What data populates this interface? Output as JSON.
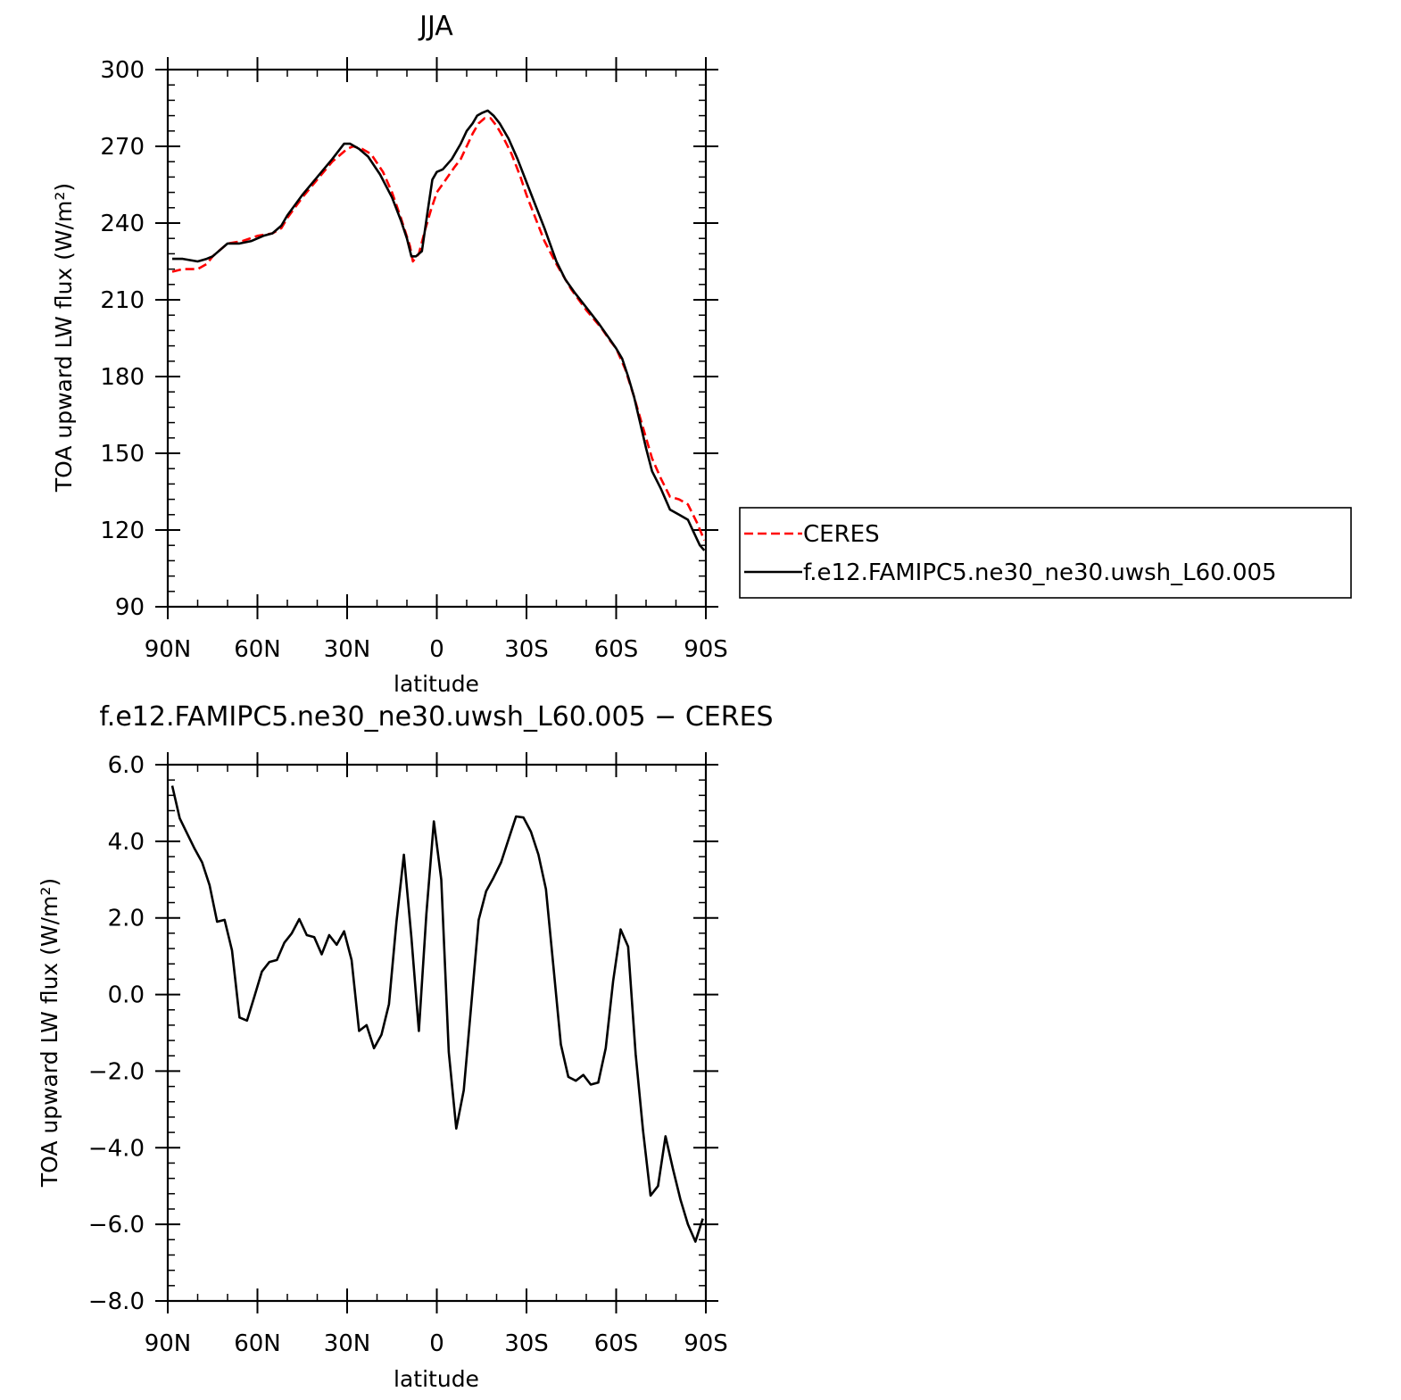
{
  "chart_data": [
    {
      "type": "line",
      "title": "JJA",
      "xlabel": "latitude",
      "ylabel": "TOA upward LW flux (W/m²)",
      "ylim": [
        90,
        300
      ],
      "yticks": [
        "90",
        "120",
        "150",
        "180",
        "210",
        "240",
        "270",
        "300"
      ],
      "xlim": [
        90,
        -90
      ],
      "xticks": [
        {
          "value": 90,
          "label": "90N"
        },
        {
          "value": 60,
          "label": "60N"
        },
        {
          "value": 30,
          "label": "30N"
        },
        {
          "value": 0,
          "label": "0"
        },
        {
          "value": -30,
          "label": "30S"
        },
        {
          "value": -60,
          "label": "60S"
        },
        {
          "value": -90,
          "label": "90S"
        }
      ],
      "grid": false,
      "legend": "right, outside plot",
      "series": [
        {
          "name": "CERES",
          "color": "#ff0000",
          "dash": "dashed",
          "points": [
            [
              88.5,
              221
            ],
            [
              85,
              222
            ],
            [
              80,
              222
            ],
            [
              77,
              224
            ],
            [
              75,
              227
            ],
            [
              70,
              232
            ],
            [
              65,
              233
            ],
            [
              60,
              235
            ],
            [
              55,
              236
            ],
            [
              52,
              238
            ],
            [
              50,
              242
            ],
            [
              45,
              250
            ],
            [
              40,
              257
            ],
            [
              35,
              264
            ],
            [
              30,
              269
            ],
            [
              28,
              270
            ],
            [
              25,
              269
            ],
            [
              22,
              267
            ],
            [
              18,
              260
            ],
            [
              15,
              252
            ],
            [
              12,
              242
            ],
            [
              9,
              231
            ],
            [
              8,
              225
            ],
            [
              6,
              228
            ],
            [
              4,
              237
            ],
            [
              2,
              245
            ],
            [
              0,
              252
            ],
            [
              -3,
              257
            ],
            [
              -6,
              262
            ],
            [
              -8,
              265
            ],
            [
              -10,
              270
            ],
            [
              -12,
              275
            ],
            [
              -14,
              279
            ],
            [
              -16,
              281
            ],
            [
              -18,
              281
            ],
            [
              -20,
              278
            ],
            [
              -22,
              274
            ],
            [
              -25,
              267
            ],
            [
              -28,
              258
            ],
            [
              -30,
              251
            ],
            [
              -33,
              242
            ],
            [
              -36,
              233
            ],
            [
              -40,
              224
            ],
            [
              -45,
              214
            ],
            [
              -50,
              206
            ],
            [
              -55,
              199
            ],
            [
              -58,
              194
            ],
            [
              -60,
              191
            ],
            [
              -63,
              183
            ],
            [
              -66,
              172
            ],
            [
              -69,
              160
            ],
            [
              -72,
              148
            ],
            [
              -75,
              140
            ],
            [
              -78,
              133
            ],
            [
              -81,
              132
            ],
            [
              -84,
              130
            ],
            [
              -87,
              123
            ],
            [
              -89.5,
              116
            ]
          ]
        },
        {
          "name": "f.e12.FAMIPC5.ne30_ne30.uwsh_L60.005",
          "color": "#000000",
          "dash": "solid",
          "points": [
            [
              88.5,
              226
            ],
            [
              85,
              226
            ],
            [
              80,
              225
            ],
            [
              77,
              226
            ],
            [
              75,
              227
            ],
            [
              72,
              230
            ],
            [
              70,
              232
            ],
            [
              66,
              232
            ],
            [
              62,
              233
            ],
            [
              58,
              235
            ],
            [
              55,
              236
            ],
            [
              52,
              239
            ],
            [
              50,
              243
            ],
            [
              45,
              251
            ],
            [
              40,
              258
            ],
            [
              35,
              265
            ],
            [
              31,
              271
            ],
            [
              29,
              271
            ],
            [
              26,
              269
            ],
            [
              23,
              266
            ],
            [
              19,
              259
            ],
            [
              15,
              250
            ],
            [
              12,
              241
            ],
            [
              10,
              234
            ],
            [
              8.5,
              227
            ],
            [
              7,
              227
            ],
            [
              5,
              229
            ],
            [
              3,
              245
            ],
            [
              1.5,
              257
            ],
            [
              0,
              260
            ],
            [
              -2,
              261
            ],
            [
              -5,
              265
            ],
            [
              -8,
              271
            ],
            [
              -10,
              276
            ],
            [
              -12,
              279
            ],
            [
              -13.5,
              282
            ],
            [
              -15,
              283
            ],
            [
              -17,
              284
            ],
            [
              -19,
              282
            ],
            [
              -21,
              279
            ],
            [
              -24,
              273
            ],
            [
              -27,
              265
            ],
            [
              -30,
              256
            ],
            [
              -33,
              247
            ],
            [
              -36,
              238
            ],
            [
              -40,
              225
            ],
            [
              -43,
              218
            ],
            [
              -46,
              213
            ],
            [
              -50,
              207
            ],
            [
              -54,
              201
            ],
            [
              -57,
              196
            ],
            [
              -60,
              191
            ],
            [
              -62,
              187
            ],
            [
              -64,
              180
            ],
            [
              -66,
              172
            ],
            [
              -68,
              162
            ],
            [
              -70,
              152
            ],
            [
              -72,
              143
            ],
            [
              -75,
              136
            ],
            [
              -78,
              128
            ],
            [
              -81,
              126
            ],
            [
              -84,
              124
            ],
            [
              -86,
              119
            ],
            [
              -88,
              114
            ],
            [
              -89.5,
              112
            ]
          ]
        }
      ]
    },
    {
      "type": "line",
      "title": "f.e12.FAMIPC5.ne30_ne30.uwsh_L60.005 − CERES",
      "xlabel": "latitude",
      "ylabel": "TOA upward LW flux (W/m²)",
      "ylim": [
        -8,
        6
      ],
      "yticks": [
        "−8.0",
        "−6.0",
        "−4.0",
        "−2.0",
        "0.0",
        "2.0",
        "4.0",
        "6.0"
      ],
      "xlim": [
        90,
        -90
      ],
      "xticks": [
        {
          "value": 90,
          "label": "90N"
        },
        {
          "value": 60,
          "label": "60N"
        },
        {
          "value": 30,
          "label": "30N"
        },
        {
          "value": 0,
          "label": "0"
        },
        {
          "value": -30,
          "label": "30S"
        },
        {
          "value": -60,
          "label": "60S"
        },
        {
          "value": -90,
          "label": "90S"
        }
      ],
      "grid": false,
      "series": [
        {
          "color": "#000000",
          "dash": "solid",
          "points": [
            [
              88.5,
              5.45
            ],
            [
              86,
              4.6
            ],
            [
              83.5,
              4.2
            ],
            [
              81,
              3.8
            ],
            [
              78.5,
              3.45
            ],
            [
              76,
              2.85
            ],
            [
              73.5,
              1.9
            ],
            [
              71,
              1.95
            ],
            [
              68.5,
              1.15
            ],
            [
              66,
              -0.6
            ],
            [
              63.5,
              -0.68
            ],
            [
              61,
              -0.05
            ],
            [
              58.5,
              0.6
            ],
            [
              56,
              0.85
            ],
            [
              53.5,
              0.9
            ],
            [
              51,
              1.35
            ],
            [
              48.5,
              1.6
            ],
            [
              46,
              1.97
            ],
            [
              43.5,
              1.55
            ],
            [
              41,
              1.5
            ],
            [
              38.5,
              1.05
            ],
            [
              36,
              1.55
            ],
            [
              33.5,
              1.3
            ],
            [
              31,
              1.65
            ],
            [
              28.5,
              0.9
            ],
            [
              26,
              -0.95
            ],
            [
              23.5,
              -0.8
            ],
            [
              21,
              -1.4
            ],
            [
              18.5,
              -1.05
            ],
            [
              16,
              -0.25
            ],
            [
              13.5,
              1.9
            ],
            [
              11,
              3.65
            ],
            [
              8.5,
              1.5
            ],
            [
              6,
              -0.95
            ],
            [
              3.5,
              2.1
            ],
            [
              1,
              4.52
            ],
            [
              -1.5,
              3.0
            ],
            [
              -4,
              -1.5
            ],
            [
              -6.5,
              -3.5
            ],
            [
              -9,
              -2.5
            ],
            [
              -11.5,
              -0.3
            ],
            [
              -14,
              1.95
            ],
            [
              -16.5,
              2.7
            ],
            [
              -19,
              3.05
            ],
            [
              -21.5,
              3.45
            ],
            [
              -24,
              4.05
            ],
            [
              -26.5,
              4.65
            ],
            [
              -29,
              4.62
            ],
            [
              -31.5,
              4.25
            ],
            [
              -34,
              3.65
            ],
            [
              -36.5,
              2.75
            ],
            [
              -39,
              0.75
            ],
            [
              -41.5,
              -1.3
            ],
            [
              -44,
              -2.15
            ],
            [
              -46.5,
              -2.25
            ],
            [
              -49,
              -2.1
            ],
            [
              -51.5,
              -2.35
            ],
            [
              -54,
              -2.3
            ],
            [
              -56.5,
              -1.4
            ],
            [
              -59,
              0.35
            ],
            [
              -61.5,
              1.7
            ],
            [
              -64,
              1.25
            ],
            [
              -66.5,
              -1.55
            ],
            [
              -69,
              -3.55
            ],
            [
              -71.5,
              -5.25
            ],
            [
              -74,
              -5.0
            ],
            [
              -76.5,
              -3.7
            ],
            [
              -79,
              -4.55
            ],
            [
              -81.5,
              -5.35
            ],
            [
              -84,
              -6.0
            ],
            [
              -86.5,
              -6.45
            ],
            [
              -89,
              -5.85
            ]
          ]
        }
      ]
    }
  ]
}
